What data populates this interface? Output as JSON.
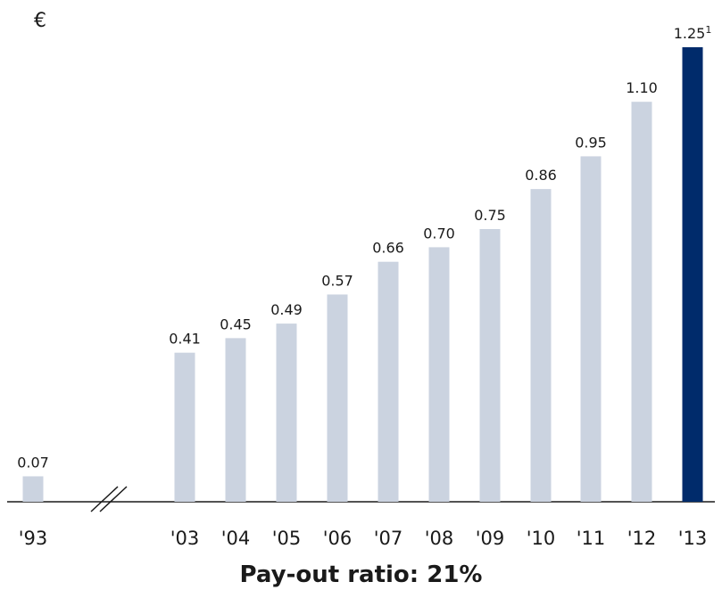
{
  "chart_data": {
    "type": "bar",
    "unit": "€",
    "categories": [
      "'93",
      "'03",
      "'04",
      "'05",
      "'06",
      "'07",
      "'08",
      "'09",
      "'10",
      "'11",
      "'12",
      "'13"
    ],
    "values": [
      0.07,
      0.41,
      0.45,
      0.49,
      0.57,
      0.66,
      0.7,
      0.75,
      0.86,
      0.95,
      1.1,
      1.25
    ],
    "labels": [
      "0.07",
      "0.41",
      "0.45",
      "0.49",
      "0.57",
      "0.66",
      "0.70",
      "0.75",
      "0.86",
      "0.95",
      "1.10",
      "1.25"
    ],
    "footnote_markers": [
      "",
      "",
      "",
      "",
      "",
      "",
      "",
      "",
      "",
      "",
      "",
      "1"
    ],
    "highlight_index": 11,
    "axis_break_between": [
      "'93",
      "'03"
    ],
    "ylim": [
      0,
      1.25
    ],
    "grid": false,
    "colors": {
      "bar": "#cbd3e0",
      "highlight": "#002b6b",
      "axis": "#1a1a1a"
    }
  },
  "note": "Pay-out ratio: 21%"
}
